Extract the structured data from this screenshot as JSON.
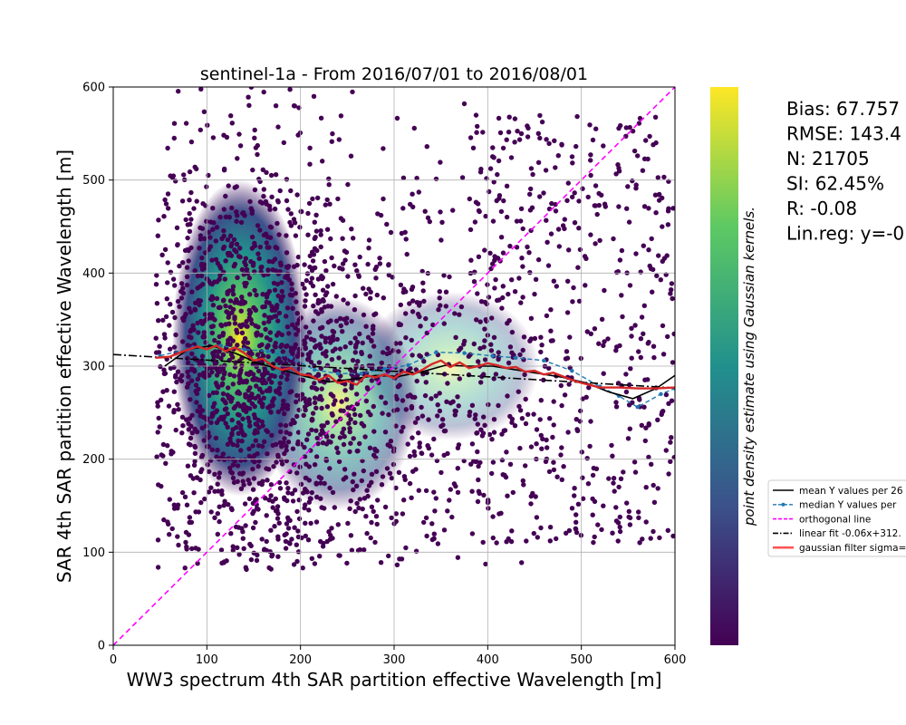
{
  "chart_data": {
    "type": "scatter",
    "title": "sentinel-1a - From 2016/07/01 to 2016/08/01",
    "xlabel": "WW3 spectrum 4th SAR partition effective Wavelength [m]",
    "ylabel": "SAR 4th SAR partition effective Wavelength [m]",
    "xlim": [
      0,
      600
    ],
    "ylim": [
      0,
      600
    ],
    "xticks": [
      "0",
      "100",
      "200",
      "300",
      "400",
      "500",
      "600"
    ],
    "yticks": [
      "0",
      "100",
      "200",
      "300",
      "400",
      "500",
      "600"
    ],
    "grid": true,
    "colorbar": {
      "label": "point density estimate using Gaussian kernels.",
      "colormap": "viridis",
      "colors": [
        "#440154",
        "#3b528b",
        "#21908d",
        "#5dc963",
        "#fde725"
      ]
    },
    "stats": [
      "Bias: 67.757",
      "RMSE: 143.4",
      "N: 21705",
      "SI: 62.45%",
      "R: -0.08",
      "Lin.reg: y=-0"
    ],
    "legend": {
      "position": "right",
      "entries": [
        {
          "label": "mean Y values per 26",
          "color": "#000000",
          "style": "solid"
        },
        {
          "label": "median Y values per",
          "color": "#1f77b4",
          "style": "dashed-marker"
        },
        {
          "label": "orthogonal line",
          "color": "#ff00ff",
          "style": "dashed"
        },
        {
          "label": "linear fit -0.06x+312.",
          "color": "#000000",
          "style": "dashdot"
        },
        {
          "label": "gaussian filter sigma=",
          "color": "#ff5555",
          "style": "solid-thick"
        }
      ]
    },
    "series": [
      {
        "kind": "density_blob",
        "blobs": [
          {
            "cx": 135,
            "cy": 330,
            "rx": 72,
            "ry": 170,
            "peak": 1.0
          },
          {
            "cx": 240,
            "cy": 260,
            "rx": 85,
            "ry": 115,
            "peak": 0.55
          },
          {
            "cx": 360,
            "cy": 300,
            "rx": 95,
            "ry": 80,
            "peak": 0.35
          }
        ]
      },
      {
        "name": "mean Y values per 26",
        "color": "#000000",
        "x": [
          55,
          80,
          105,
          130,
          155,
          180,
          205,
          230,
          255,
          280,
          305,
          330,
          355,
          380,
          405,
          430,
          455,
          480,
          505,
          530,
          555,
          580,
          600
        ],
        "y": [
          300,
          318,
          322,
          314,
          303,
          296,
          289,
          283,
          286,
          290,
          289,
          294,
          301,
          300,
          300,
          296,
          292,
          288,
          282,
          272,
          265,
          276,
          290
        ]
      },
      {
        "name": "median Y values per",
        "color": "#1f77b4",
        "x": [
          50,
          85,
          115,
          140,
          165,
          190,
          215,
          240,
          265,
          290,
          315,
          345,
          375,
          405,
          430,
          460,
          490,
          520,
          540,
          560,
          585,
          600
        ],
        "y": [
          311,
          320,
          322,
          318,
          316,
          309,
          296,
          292,
          292,
          297,
          301,
          315,
          314,
          311,
          309,
          306,
          295,
          278,
          268,
          256,
          270,
          276
        ]
      },
      {
        "name": "orthogonal line",
        "color": "#ff00ff",
        "x": [
          0,
          600
        ],
        "y": [
          0,
          600
        ]
      },
      {
        "name": "linear fit -0.06x+312.",
        "color": "#000000",
        "x": [
          0,
          600
        ],
        "y": [
          312.5,
          276.5
        ]
      },
      {
        "name": "gaussian filter sigma=",
        "color": "#ff5555",
        "x": [
          45,
          60,
          75,
          90,
          100,
          110,
          120,
          130,
          140,
          150,
          160,
          170,
          180,
          190,
          200,
          210,
          220,
          230,
          240,
          250,
          260,
          270,
          280,
          290,
          300,
          310,
          320,
          330,
          340,
          350,
          360,
          370,
          380,
          390,
          400,
          410,
          420,
          430,
          440,
          450,
          460,
          470,
          480,
          490,
          500,
          520,
          540,
          560,
          580,
          600
        ],
        "y": [
          309,
          310,
          316,
          321,
          318,
          322,
          316,
          320,
          314,
          306,
          308,
          300,
          296,
          298,
          291,
          290,
          285,
          290,
          282,
          284,
          280,
          290,
          288,
          291,
          287,
          294,
          291,
          296,
          302,
          306,
          299,
          304,
          298,
          300,
          303,
          301,
          298,
          299,
          294,
          295,
          291,
          293,
          289,
          285,
          282,
          277,
          277,
          276,
          276,
          277
        ]
      }
    ]
  }
}
